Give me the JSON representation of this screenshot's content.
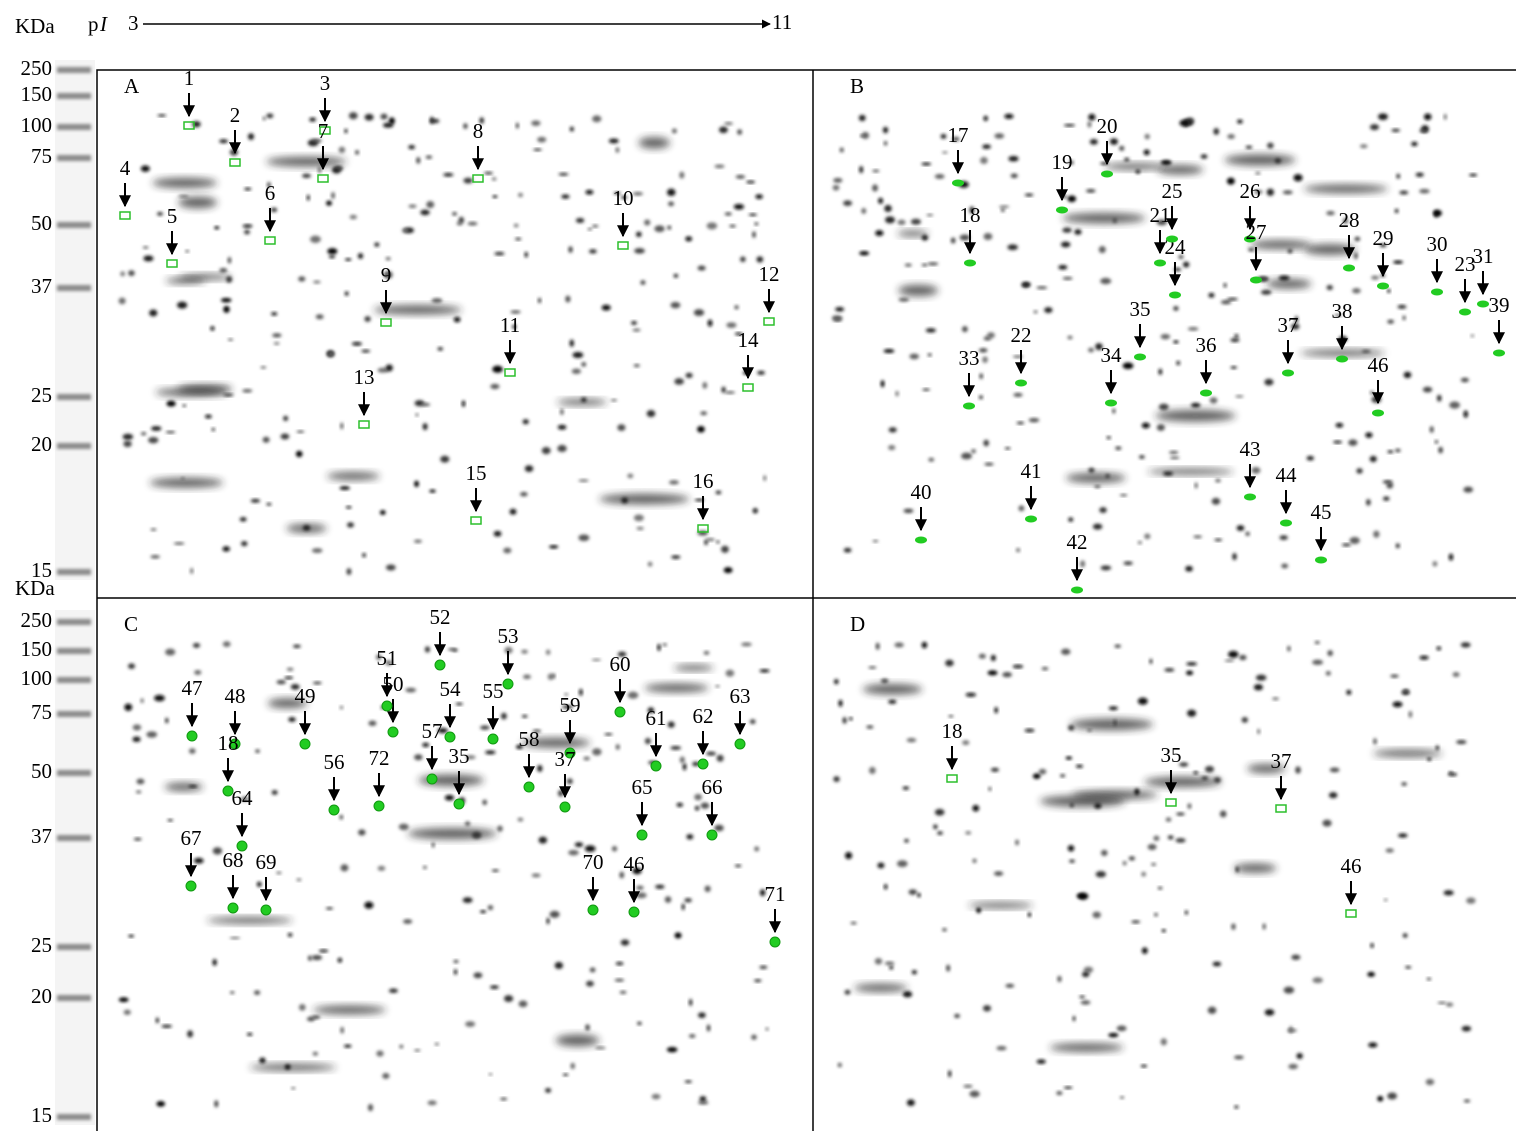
{
  "header": {
    "unit": "KDa",
    "pi_p": "p",
    "pi_i": "I",
    "pi_start": "3",
    "pi_end": "11"
  },
  "ladders": [
    {
      "marks": [
        "250",
        "150",
        "100",
        "75",
        "50",
        "37",
        "25",
        "20",
        "15"
      ]
    },
    {
      "unit": "KDa",
      "marks": [
        "250",
        "150",
        "100",
        "75",
        "50",
        "37",
        "25",
        "20",
        "15"
      ]
    }
  ],
  "panels": [
    {
      "label": "A",
      "spots": [
        "1",
        "2",
        "3",
        "4",
        "5",
        "6",
        "7",
        "8",
        "9",
        "10",
        "11",
        "12",
        "13",
        "14",
        "15",
        "16"
      ]
    },
    {
      "label": "B",
      "spots": [
        "17",
        "18",
        "19",
        "20",
        "21",
        "22",
        "23",
        "24",
        "25",
        "26",
        "27",
        "28",
        "29",
        "30",
        "31",
        "33",
        "34",
        "35",
        "36",
        "37",
        "38",
        "39",
        "40",
        "41",
        "42",
        "43",
        "44",
        "45",
        "46"
      ]
    },
    {
      "label": "C",
      "spots": [
        "47",
        "48",
        "49",
        "50",
        "51",
        "52",
        "53",
        "54",
        "55",
        "56",
        "57",
        "58",
        "59",
        "60",
        "61",
        "62",
        "63",
        "64",
        "65",
        "66",
        "67",
        "68",
        "69",
        "70",
        "46",
        "71",
        "72",
        "35",
        "37",
        "18"
      ]
    },
    {
      "label": "D",
      "spots": [
        "18",
        "35",
        "37",
        "46"
      ]
    }
  ]
}
